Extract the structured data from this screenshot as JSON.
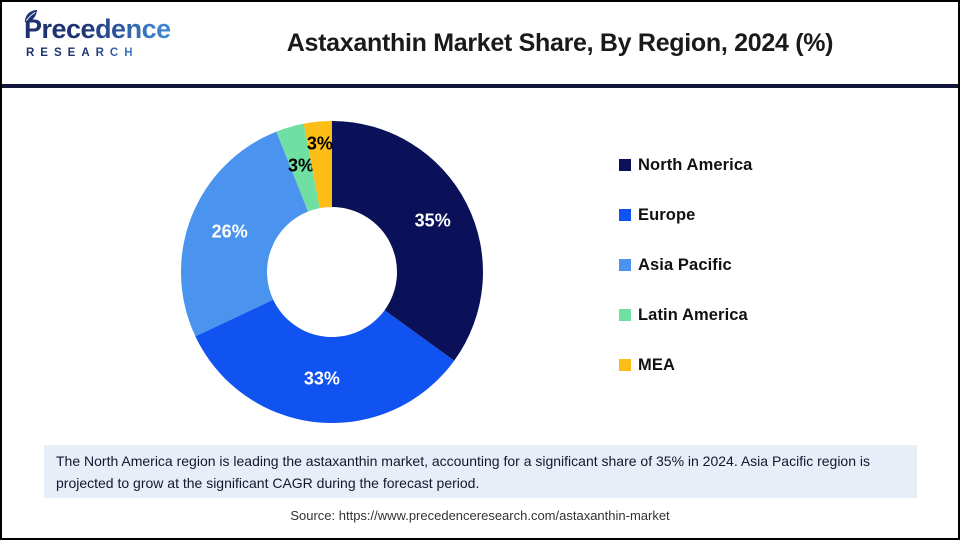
{
  "header": {
    "logo": {
      "brand": "Precedence",
      "subtitle": "RESEARCH"
    },
    "title": "Astaxanthin Market Share, By Region, 2024 (%)"
  },
  "chart_data": {
    "type": "pie",
    "variant": "donut",
    "title": "Astaxanthin Market Share, By Region, 2024 (%)",
    "unit": "%",
    "categories": [
      "North America",
      "Europe",
      "Asia Pacific",
      "Latin America",
      "MEA"
    ],
    "values": [
      35,
      33,
      26,
      3,
      3
    ],
    "slice_labels": [
      "35%",
      "33%",
      "26%",
      "3%",
      "3%"
    ],
    "colors": [
      "#0a1158",
      "#1153f0",
      "#4a94ef",
      "#6fdfa2",
      "#fdbd17"
    ],
    "label_colors": [
      "#ffffff",
      "#ffffff",
      "#ffffff",
      "#000000",
      "#000000"
    ],
    "start_angle_deg": 0,
    "direction": "clockwise",
    "donut_hole_ratio": 0.43,
    "legend_position": "right"
  },
  "note": "The North America region is leading the astaxanthin market, accounting for a significant share of 35% in 2024. Asia Pacific region is projected to grow at the significant CAGR during the forecast period.",
  "source": "Source: https://www.precedenceresearch.com/astaxanthin-market",
  "colors": {
    "logo_navy": "#1e3272",
    "logo_blue": "#3f86d2",
    "header_divider": "#11173a",
    "note_bg": "#e7eef8",
    "note_text": "#16162e",
    "title_text": "#1a1a1a",
    "source_text": "#333333",
    "page_border": "#000000"
  }
}
